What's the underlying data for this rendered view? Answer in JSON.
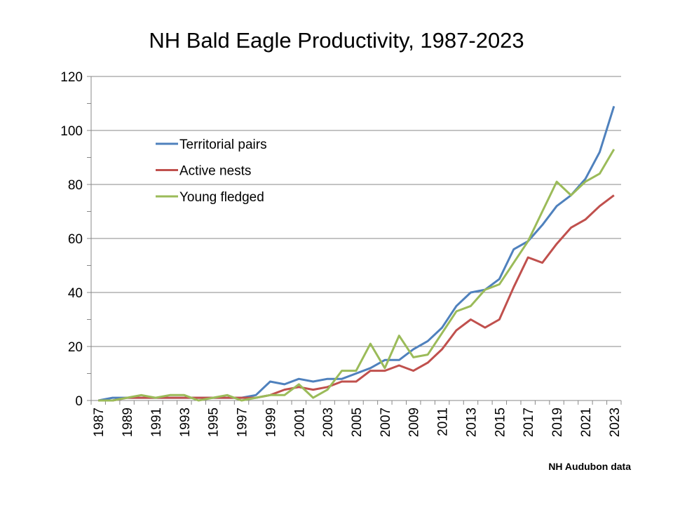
{
  "chart_data": {
    "type": "line",
    "title": "NH Bald Eagle Productivity,  1987-2023",
    "source_note": "NH Audubon data",
    "x": [
      1987,
      1988,
      1989,
      1990,
      1991,
      1992,
      1993,
      1994,
      1995,
      1996,
      1997,
      1998,
      1999,
      2000,
      2001,
      2002,
      2003,
      2004,
      2005,
      2006,
      2007,
      2008,
      2009,
      2010,
      2011,
      2012,
      2013,
      2014,
      2015,
      2016,
      2017,
      2018,
      2019,
      2020,
      2021,
      2022,
      2023
    ],
    "x_tick_labels": [
      "1987",
      "1989",
      "1991",
      "1993",
      "1995",
      "1997",
      "1999",
      "2001",
      "2003",
      "2005",
      "2007",
      "2009",
      "2011",
      "2013",
      "2015",
      "2017",
      "2019",
      "2021",
      "2023"
    ],
    "ylim": [
      0,
      120
    ],
    "y_ticks": [
      0,
      20,
      40,
      60,
      80,
      100,
      120
    ],
    "grid": "horizontal",
    "legend_position": "upper-left-inside",
    "series": [
      {
        "name": "Territorial pairs",
        "color": "#4F81BD",
        "values": [
          0,
          1,
          1,
          1,
          1,
          1,
          1,
          1,
          1,
          1,
          1,
          2,
          7,
          6,
          8,
          7,
          8,
          8,
          10,
          12,
          15,
          15,
          19,
          22,
          27,
          35,
          40,
          41,
          45,
          56,
          59,
          65,
          72,
          76,
          82,
          92,
          109
        ]
      },
      {
        "name": "Active nests",
        "color": "#C0504D",
        "values": [
          0,
          0,
          1,
          1,
          1,
          1,
          1,
          1,
          1,
          1,
          1,
          1,
          2,
          4,
          5,
          4,
          5,
          7,
          7,
          11,
          11,
          13,
          11,
          14,
          19,
          26,
          30,
          27,
          30,
          42,
          53,
          51,
          58,
          64,
          67,
          72,
          76
        ]
      },
      {
        "name": "Young fledged",
        "color": "#9BBB59",
        "values": [
          0,
          0,
          1,
          2,
          1,
          2,
          2,
          0,
          1,
          2,
          0,
          1,
          2,
          2,
          6,
          1,
          4,
          11,
          11,
          21,
          12,
          24,
          16,
          17,
          25,
          33,
          35,
          41,
          43,
          51,
          59,
          70,
          81,
          76,
          81,
          84,
          93
        ]
      }
    ]
  }
}
